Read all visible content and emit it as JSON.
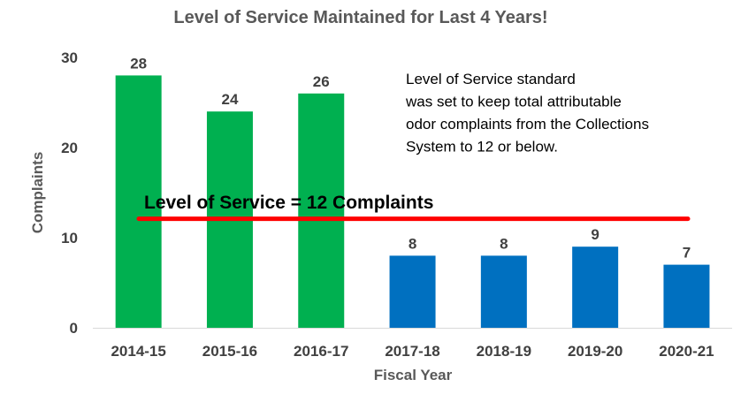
{
  "chart_data": {
    "type": "bar",
    "title": "Level of Service Maintained for Last 4 Years!",
    "xlabel": "Fiscal Year",
    "ylabel": "Complaints",
    "categories": [
      "2014-15",
      "2015-16",
      "2016-17",
      "2017-18",
      "2018-19",
      "2019-20",
      "2020-21"
    ],
    "values": [
      28,
      24,
      26,
      8,
      8,
      9,
      7
    ],
    "bar_colors": [
      "#00b050",
      "#00b050",
      "#00b050",
      "#0070c0",
      "#0070c0",
      "#0070c0",
      "#0070c0"
    ],
    "ylim": [
      0,
      30
    ],
    "yticks": [
      0,
      10,
      20,
      30
    ],
    "grid": false,
    "reference_line": {
      "value": 12,
      "label": "Level of Service = 12 Complaints",
      "color": "#ff0000"
    },
    "annotation": [
      "Level of Service standard",
      "was set to keep total attributable",
      "odor complaints from the Collections",
      "System to 12 or below."
    ]
  }
}
